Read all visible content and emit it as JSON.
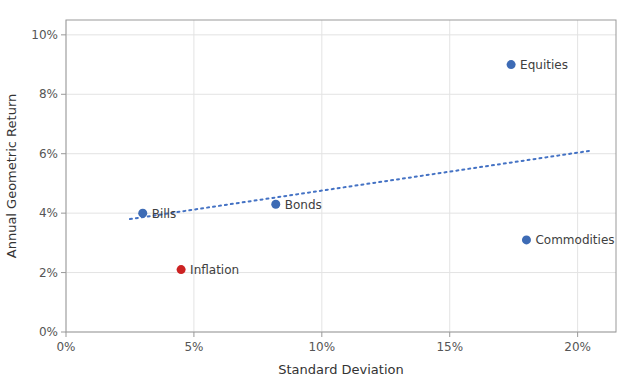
{
  "chart_data": {
    "type": "scatter",
    "xlabel": "Standard Deviation",
    "ylabel": "Annual Geometric Return",
    "series": [
      {
        "type": "scatter",
        "marker": "circle",
        "x": [
          0.03,
          0.082,
          0.174,
          0.18,
          0.045
        ],
        "values": [
          0.04,
          0.043,
          0.09,
          0.031,
          0.021
        ],
        "labels": [
          "Bills",
          "Bonds",
          "Equities",
          "Commodities",
          "Inflation"
        ],
        "colors": [
          "#3D6BB5",
          "#3D6BB5",
          "#3D6BB5",
          "#3D6BB5",
          "#CC2222"
        ]
      },
      {
        "type": "line",
        "line_style": "dotted",
        "color": "#4472C4",
        "x": [
          0.025,
          0.205
        ],
        "values": [
          0.038,
          0.061
        ]
      }
    ],
    "xlim": [
      0,
      0.215
    ],
    "ylim": [
      0,
      0.105
    ],
    "xticks": [
      {
        "value": 0,
        "label": "0%"
      },
      {
        "value": 0.05,
        "label": "5%"
      },
      {
        "value": 0.1,
        "label": "10%"
      },
      {
        "value": 0.15,
        "label": "15%"
      },
      {
        "value": 0.2,
        "label": "20%"
      }
    ],
    "yticks": [
      {
        "value": 0,
        "label": "0%"
      },
      {
        "value": 0.02,
        "label": "2%"
      },
      {
        "value": 0.04,
        "label": "4%"
      },
      {
        "value": 0.06,
        "label": "6%"
      },
      {
        "value": 0.08,
        "label": "8%"
      },
      {
        "value": 0.1,
        "label": "10%"
      }
    ],
    "grid": true
  }
}
